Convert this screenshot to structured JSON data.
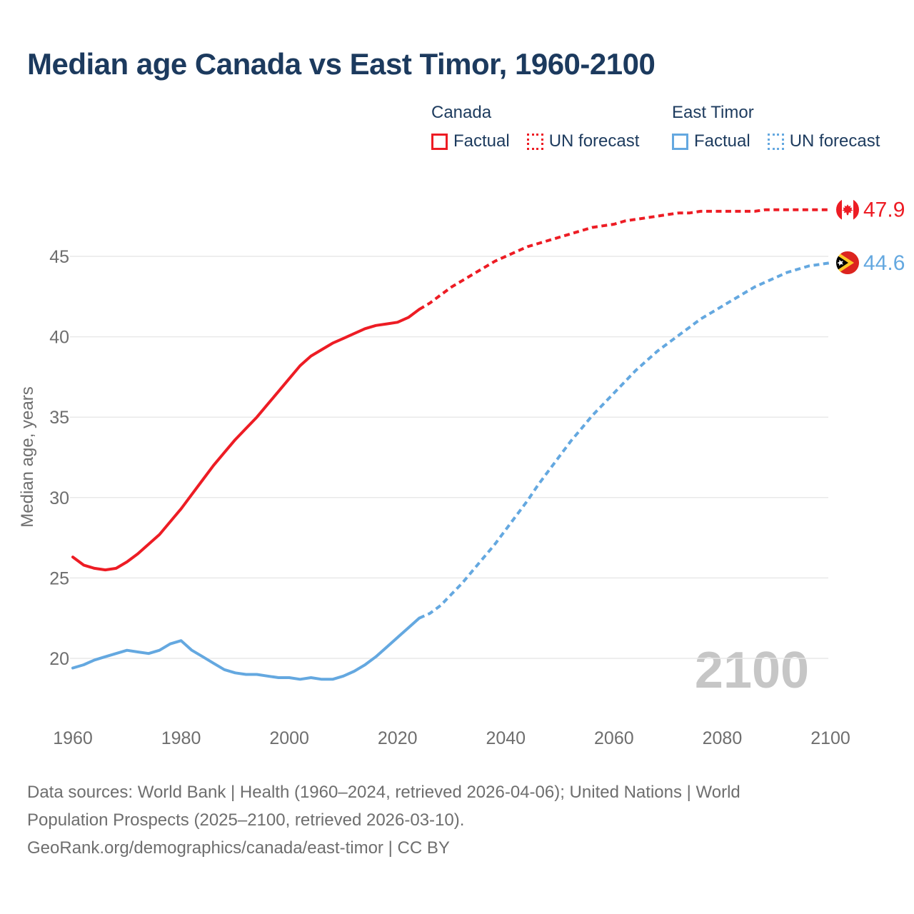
{
  "title": "Median age Canada vs East Timor, 1960-2100",
  "legend": {
    "groups": [
      {
        "name": "Canada",
        "color": "#ed1c24",
        "items": [
          {
            "label": "Factual",
            "style": "solid"
          },
          {
            "label": "UN forecast",
            "style": "dotted"
          }
        ]
      },
      {
        "name": "East Timor",
        "color": "#64a8e0",
        "items": [
          {
            "label": "Factual",
            "style": "solid"
          },
          {
            "label": "UN forecast",
            "style": "dotted"
          }
        ]
      }
    ]
  },
  "watermark": "2100",
  "footer": {
    "lines": [
      "Data sources: World Bank | Health (1960–2024, retrieved 2026-04-06); United Nations | World",
      "Population Prospects (2025–2100, retrieved 2026-03-10).",
      "GeoRank.org/demographics/canada/east-timor | CC BY"
    ]
  },
  "colors": {
    "canada": "#ed1c24",
    "east_timor": "#64a8e0",
    "title_text": "#1c3a5e",
    "axis_text": "#6e6e6e",
    "gridline": "#e9e9e9",
    "watermark": "#c6c6c6"
  },
  "chart_data": {
    "type": "line",
    "title": "Median age Canada vs East Timor, 1960-2100",
    "xlabel": "",
    "ylabel": "Median age, years",
    "x_ticks": [
      1960,
      1980,
      2000,
      2020,
      2040,
      2060,
      2080,
      2100
    ],
    "y_ticks": [
      20,
      25,
      30,
      35,
      40,
      45
    ],
    "xlim": [
      1960,
      2100
    ],
    "ylim": [
      17.5,
      49.5
    ],
    "grid": "horizontal-only",
    "legend_position": "top-right",
    "series": [
      {
        "name": "Canada factual",
        "color": "#ed1c24",
        "style": "solid",
        "points": [
          [
            1960,
            26.3
          ],
          [
            1962,
            25.8
          ],
          [
            1964,
            25.6
          ],
          [
            1966,
            25.5
          ],
          [
            1968,
            25.6
          ],
          [
            1970,
            26.0
          ],
          [
            1972,
            26.5
          ],
          [
            1974,
            27.1
          ],
          [
            1976,
            27.7
          ],
          [
            1978,
            28.5
          ],
          [
            1980,
            29.3
          ],
          [
            1982,
            30.2
          ],
          [
            1984,
            31.1
          ],
          [
            1986,
            32.0
          ],
          [
            1988,
            32.8
          ],
          [
            1990,
            33.6
          ],
          [
            1992,
            34.3
          ],
          [
            1994,
            35.0
          ],
          [
            1996,
            35.8
          ],
          [
            1998,
            36.6
          ],
          [
            2000,
            37.4
          ],
          [
            2002,
            38.2
          ],
          [
            2004,
            38.8
          ],
          [
            2006,
            39.2
          ],
          [
            2008,
            39.6
          ],
          [
            2010,
            39.9
          ],
          [
            2012,
            40.2
          ],
          [
            2014,
            40.5
          ],
          [
            2016,
            40.7
          ],
          [
            2018,
            40.8
          ],
          [
            2020,
            40.9
          ],
          [
            2022,
            41.2
          ],
          [
            2024,
            41.7
          ]
        ]
      },
      {
        "name": "Canada UN forecast",
        "color": "#ed1c24",
        "style": "dashed",
        "end_label": "47.9",
        "end_flag": "canada",
        "points": [
          [
            2024,
            41.7
          ],
          [
            2026,
            42.1
          ],
          [
            2028,
            42.6
          ],
          [
            2030,
            43.1
          ],
          [
            2032,
            43.5
          ],
          [
            2034,
            43.9
          ],
          [
            2036,
            44.3
          ],
          [
            2038,
            44.7
          ],
          [
            2040,
            45.0
          ],
          [
            2042,
            45.3
          ],
          [
            2044,
            45.6
          ],
          [
            2046,
            45.8
          ],
          [
            2048,
            46.0
          ],
          [
            2050,
            46.2
          ],
          [
            2052,
            46.4
          ],
          [
            2054,
            46.6
          ],
          [
            2056,
            46.8
          ],
          [
            2058,
            46.9
          ],
          [
            2060,
            47.0
          ],
          [
            2062,
            47.2
          ],
          [
            2064,
            47.3
          ],
          [
            2066,
            47.4
          ],
          [
            2068,
            47.5
          ],
          [
            2070,
            47.6
          ],
          [
            2072,
            47.7
          ],
          [
            2074,
            47.7
          ],
          [
            2076,
            47.8
          ],
          [
            2078,
            47.8
          ],
          [
            2080,
            47.8
          ],
          [
            2082,
            47.8
          ],
          [
            2084,
            47.8
          ],
          [
            2086,
            47.8
          ],
          [
            2088,
            47.9
          ],
          [
            2090,
            47.9
          ],
          [
            2092,
            47.9
          ],
          [
            2094,
            47.9
          ],
          [
            2096,
            47.9
          ],
          [
            2098,
            47.9
          ],
          [
            2100,
            47.9
          ]
        ]
      },
      {
        "name": "East Timor factual",
        "color": "#64a8e0",
        "style": "solid",
        "points": [
          [
            1960,
            19.4
          ],
          [
            1962,
            19.6
          ],
          [
            1964,
            19.9
          ],
          [
            1966,
            20.1
          ],
          [
            1968,
            20.3
          ],
          [
            1970,
            20.5
          ],
          [
            1972,
            20.4
          ],
          [
            1974,
            20.3
          ],
          [
            1976,
            20.5
          ],
          [
            1978,
            20.9
          ],
          [
            1980,
            21.1
          ],
          [
            1982,
            20.5
          ],
          [
            1984,
            20.1
          ],
          [
            1986,
            19.7
          ],
          [
            1988,
            19.3
          ],
          [
            1990,
            19.1
          ],
          [
            1992,
            19.0
          ],
          [
            1994,
            19.0
          ],
          [
            1996,
            18.9
          ],
          [
            1998,
            18.8
          ],
          [
            2000,
            18.8
          ],
          [
            2002,
            18.7
          ],
          [
            2004,
            18.8
          ],
          [
            2006,
            18.7
          ],
          [
            2008,
            18.7
          ],
          [
            2010,
            18.9
          ],
          [
            2012,
            19.2
          ],
          [
            2014,
            19.6
          ],
          [
            2016,
            20.1
          ],
          [
            2018,
            20.7
          ],
          [
            2020,
            21.3
          ],
          [
            2022,
            21.9
          ],
          [
            2024,
            22.5
          ]
        ]
      },
      {
        "name": "East Timor UN forecast",
        "color": "#64a8e0",
        "style": "dashed",
        "end_label": "44.6",
        "end_flag": "east-timor",
        "points": [
          [
            2024,
            22.5
          ],
          [
            2026,
            22.8
          ],
          [
            2028,
            23.3
          ],
          [
            2030,
            24.0
          ],
          [
            2032,
            24.7
          ],
          [
            2034,
            25.5
          ],
          [
            2036,
            26.3
          ],
          [
            2038,
            27.1
          ],
          [
            2040,
            28.0
          ],
          [
            2042,
            28.9
          ],
          [
            2044,
            29.8
          ],
          [
            2046,
            30.8
          ],
          [
            2048,
            31.7
          ],
          [
            2050,
            32.6
          ],
          [
            2052,
            33.5
          ],
          [
            2054,
            34.3
          ],
          [
            2056,
            35.1
          ],
          [
            2058,
            35.8
          ],
          [
            2060,
            36.5
          ],
          [
            2062,
            37.2
          ],
          [
            2064,
            37.9
          ],
          [
            2066,
            38.5
          ],
          [
            2068,
            39.1
          ],
          [
            2070,
            39.6
          ],
          [
            2072,
            40.1
          ],
          [
            2074,
            40.6
          ],
          [
            2076,
            41.1
          ],
          [
            2078,
            41.5
          ],
          [
            2080,
            41.9
          ],
          [
            2082,
            42.3
          ],
          [
            2084,
            42.7
          ],
          [
            2086,
            43.1
          ],
          [
            2088,
            43.4
          ],
          [
            2090,
            43.7
          ],
          [
            2092,
            44.0
          ],
          [
            2094,
            44.2
          ],
          [
            2096,
            44.4
          ],
          [
            2098,
            44.5
          ],
          [
            2100,
            44.6
          ]
        ]
      }
    ]
  }
}
